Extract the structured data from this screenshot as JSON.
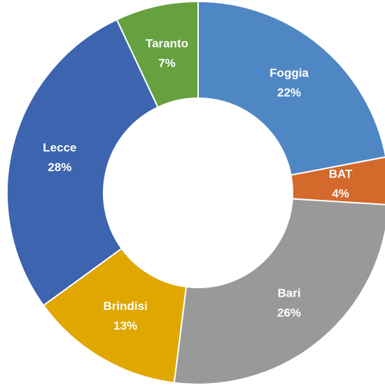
{
  "chart_data": {
    "type": "donut",
    "categories": [
      "Foggia",
      "BAT",
      "Bari",
      "Brindisi",
      "Lecce",
      "Taranto"
    ],
    "values": [
      22,
      4,
      26,
      13,
      28,
      7
    ],
    "value_labels": [
      "22%",
      "4%",
      "26%",
      "13%",
      "28%",
      "7%"
    ],
    "colors": [
      "#4f87c4",
      "#d3692b",
      "#999999",
      "#e0a700",
      "#3d64ae",
      "#67a13f"
    ]
  }
}
